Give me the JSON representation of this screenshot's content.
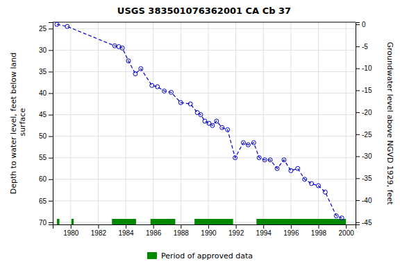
{
  "chart_data": {
    "type": "line",
    "title": "USGS 383501076362001 CA Cb  37",
    "ylabel": "Depth to water level, feet below land\n surface",
    "y2label": "Groundwater level above NGVD 1929, feet",
    "xlim": [
      1978.7,
      2000.7
    ],
    "xticks": [
      1980,
      1982,
      1984,
      1986,
      1988,
      1990,
      1992,
      1994,
      1996,
      1998,
      2000
    ],
    "ylim": [
      70.5,
      23.5
    ],
    "yticks": [
      25,
      30,
      35,
      40,
      45,
      50,
      55,
      60,
      65,
      70
    ],
    "y2lim": [
      -45.5,
      0.5
    ],
    "y2ticks": [
      0,
      -5,
      -10,
      -15,
      -20,
      -25,
      -30,
      -35,
      -40,
      -45
    ],
    "grid": true,
    "x": [
      1979.0,
      1979.75,
      1983.2,
      1983.5,
      1983.75,
      1984.2,
      1984.7,
      1985.1,
      1985.9,
      1986.3,
      1986.8,
      1987.3,
      1988.0,
      1988.7,
      1989.2,
      1989.45,
      1989.75,
      1990.05,
      1990.3,
      1990.6,
      1991.0,
      1991.4,
      1991.95,
      1992.55,
      1992.9,
      1993.3,
      1993.7,
      1994.1,
      1994.5,
      1995.0,
      1995.5,
      1996.0,
      1996.5,
      1997.0,
      1997.5,
      1998.0,
      1998.5,
      1999.3,
      1999.7
    ],
    "series": [
      {
        "color": "#0000cc",
        "marker": "circle",
        "line_style": "dashed",
        "values": [
          24.0,
          24.5,
          29.0,
          29.2,
          29.5,
          32.5,
          35.5,
          34.3,
          38.2,
          38.5,
          39.5,
          39.8,
          42.2,
          42.5,
          44.5,
          45.0,
          46.5,
          47.0,
          47.5,
          46.5,
          48.0,
          48.5,
          55.0,
          51.5,
          52.0,
          51.5,
          55.0,
          55.5,
          55.5,
          57.5,
          55.5,
          58.0,
          57.5,
          60.0,
          61.0,
          61.5,
          63.0,
          68.5,
          69.0
        ]
      }
    ],
    "periods": {
      "name": "Period of approved data",
      "color": "#008800",
      "values": [
        [
          1979.0,
          1979.18
        ],
        [
          1980.05,
          1980.22
        ],
        [
          1983.0,
          1984.75
        ],
        [
          1985.8,
          1987.6
        ],
        [
          1989.0,
          1991.8
        ],
        [
          1993.5,
          2000.0
        ]
      ]
    }
  }
}
